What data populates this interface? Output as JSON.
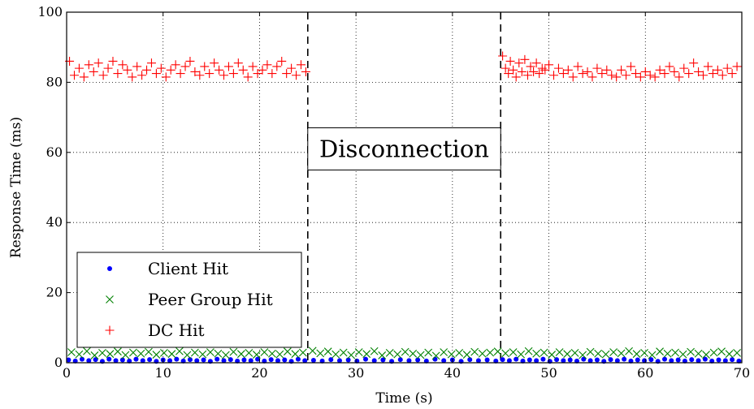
{
  "chart_data": {
    "type": "scatter",
    "xlabel": "Time (s)",
    "ylabel": "Response Time (ms)",
    "xlim": [
      0,
      70
    ],
    "ylim": [
      0,
      100
    ],
    "xticks": [
      0,
      10,
      20,
      30,
      40,
      50,
      60,
      70
    ],
    "yticks": [
      0,
      20,
      40,
      60,
      80,
      100
    ],
    "grid": true,
    "legend_position": "bottom-left",
    "vlines": [
      25,
      45
    ],
    "annotation": {
      "text": "Disconnection",
      "x_start": 25,
      "x_end": 45,
      "y": 61
    },
    "series": [
      {
        "name": "Client Hit",
        "marker": "dot",
        "color": "#0000ff",
        "points": [
          [
            0.2,
            0.8
          ],
          [
            0.9,
            0.5
          ],
          [
            1.6,
            1.0
          ],
          [
            2.3,
            0.6
          ],
          [
            3.0,
            0.9
          ],
          [
            3.7,
            0.4
          ],
          [
            4.4,
            1.0
          ],
          [
            5.1,
            0.6
          ],
          [
            5.8,
            0.8
          ],
          [
            6.5,
            0.5
          ],
          [
            7.2,
            1.0
          ],
          [
            7.9,
            0.6
          ],
          [
            8.6,
            0.9
          ],
          [
            9.3,
            0.4
          ],
          [
            10.0,
            0.8
          ],
          [
            10.7,
            0.6
          ],
          [
            11.4,
            1.0
          ],
          [
            12.1,
            0.5
          ],
          [
            12.8,
            0.9
          ],
          [
            13.5,
            0.6
          ],
          [
            14.2,
            0.8
          ],
          [
            14.9,
            0.4
          ],
          [
            15.6,
            1.0
          ],
          [
            16.3,
            0.6
          ],
          [
            17.0,
            0.9
          ],
          [
            17.7,
            0.5
          ],
          [
            18.4,
            0.8
          ],
          [
            19.1,
            0.6
          ],
          [
            19.8,
            1.0
          ],
          [
            20.5,
            0.5
          ],
          [
            21.2,
            0.9
          ],
          [
            21.9,
            0.6
          ],
          [
            22.6,
            0.8
          ],
          [
            23.3,
            0.4
          ],
          [
            24.0,
            1.0
          ],
          [
            24.7,
            0.6
          ],
          [
            25.6,
            0.7
          ],
          [
            26.5,
            0.5
          ],
          [
            27.4,
            0.9
          ],
          [
            28.3,
            0.6
          ],
          [
            29.2,
            0.8
          ],
          [
            30.1,
            0.5
          ],
          [
            31.0,
            1.0
          ],
          [
            31.9,
            0.6
          ],
          [
            32.8,
            0.8
          ],
          [
            33.7,
            0.4
          ],
          [
            34.6,
            0.9
          ],
          [
            35.5,
            0.6
          ],
          [
            36.4,
            0.8
          ],
          [
            37.3,
            0.5
          ],
          [
            38.2,
            1.0
          ],
          [
            39.1,
            0.6
          ],
          [
            40.0,
            0.8
          ],
          [
            40.9,
            0.4
          ],
          [
            41.8,
            0.9
          ],
          [
            42.7,
            0.6
          ],
          [
            43.6,
            0.8
          ],
          [
            44.5,
            0.5
          ],
          [
            45.2,
            0.9
          ],
          [
            45.9,
            0.6
          ],
          [
            46.6,
            1.0
          ],
          [
            47.3,
            0.5
          ],
          [
            48.0,
            0.8
          ],
          [
            48.7,
            0.6
          ],
          [
            49.4,
            1.0
          ],
          [
            50.1,
            0.4
          ],
          [
            50.8,
            0.9
          ],
          [
            51.5,
            0.6
          ],
          [
            52.2,
            0.8
          ],
          [
            52.9,
            0.5
          ],
          [
            53.6,
            1.0
          ],
          [
            54.3,
            0.6
          ],
          [
            55.0,
            0.8
          ],
          [
            55.7,
            0.4
          ],
          [
            56.4,
            0.9
          ],
          [
            57.1,
            0.6
          ],
          [
            57.8,
            1.0
          ],
          [
            58.5,
            0.5
          ],
          [
            59.2,
            0.8
          ],
          [
            59.9,
            0.6
          ],
          [
            60.6,
            0.9
          ],
          [
            61.3,
            0.4
          ],
          [
            62.0,
            1.0
          ],
          [
            62.7,
            0.6
          ],
          [
            63.4,
            0.8
          ],
          [
            64.1,
            0.5
          ],
          [
            64.8,
            0.9
          ],
          [
            65.5,
            0.6
          ],
          [
            66.2,
            1.0
          ],
          [
            66.9,
            0.5
          ],
          [
            67.6,
            0.8
          ],
          [
            68.3,
            0.6
          ],
          [
            69.0,
            0.9
          ],
          [
            69.7,
            0.5
          ]
        ]
      },
      {
        "name": "Peer Group Hit",
        "marker": "x",
        "color": "#008000",
        "points": [
          [
            0.5,
            3.0
          ],
          [
            1.3,
            2.4
          ],
          [
            2.1,
            3.3
          ],
          [
            2.9,
            2.1
          ],
          [
            3.7,
            2.8
          ],
          [
            4.5,
            2.5
          ],
          [
            5.3,
            3.2
          ],
          [
            6.1,
            2.2
          ],
          [
            6.9,
            2.9
          ],
          [
            7.7,
            2.6
          ],
          [
            8.5,
            3.1
          ],
          [
            9.3,
            2.3
          ],
          [
            10.1,
            2.8
          ],
          [
            10.9,
            2.5
          ],
          [
            11.7,
            3.3
          ],
          [
            12.5,
            2.2
          ],
          [
            13.3,
            2.9
          ],
          [
            14.1,
            2.4
          ],
          [
            14.9,
            3.0
          ],
          [
            15.7,
            2.6
          ],
          [
            16.5,
            2.2
          ],
          [
            17.3,
            3.1
          ],
          [
            18.1,
            2.5
          ],
          [
            18.9,
            2.8
          ],
          [
            19.7,
            2.3
          ],
          [
            20.5,
            3.0
          ],
          [
            21.3,
            2.6
          ],
          [
            22.1,
            2.4
          ],
          [
            22.9,
            3.2
          ],
          [
            23.7,
            2.5
          ],
          [
            24.5,
            2.9
          ],
          [
            25.5,
            3.4
          ],
          [
            26.3,
            2.7
          ],
          [
            27.1,
            3.2
          ],
          [
            27.9,
            2.4
          ],
          [
            28.7,
            2.9
          ],
          [
            29.5,
            2.2
          ],
          [
            30.3,
            3.0
          ],
          [
            31.1,
            2.5
          ],
          [
            31.9,
            3.3
          ],
          [
            32.7,
            2.1
          ],
          [
            33.5,
            2.8
          ],
          [
            34.3,
            2.4
          ],
          [
            35.1,
            3.1
          ],
          [
            35.9,
            2.6
          ],
          [
            36.7,
            2.2
          ],
          [
            37.5,
            2.9
          ],
          [
            38.3,
            2.0
          ],
          [
            39.1,
            3.0
          ],
          [
            39.9,
            2.4
          ],
          [
            40.7,
            2.8
          ],
          [
            41.5,
            2.3
          ],
          [
            42.3,
            3.1
          ],
          [
            43.1,
            2.6
          ],
          [
            43.9,
            2.9
          ],
          [
            44.7,
            3.2
          ],
          [
            45.5,
            2.7
          ],
          [
            46.3,
            3.0
          ],
          [
            47.1,
            2.4
          ],
          [
            47.9,
            3.3
          ],
          [
            48.7,
            2.6
          ],
          [
            49.5,
            2.9
          ],
          [
            50.3,
            2.3
          ],
          [
            51.1,
            3.0
          ],
          [
            51.9,
            2.5
          ],
          [
            52.7,
            2.8
          ],
          [
            53.5,
            2.2
          ],
          [
            54.3,
            3.1
          ],
          [
            55.1,
            2.6
          ],
          [
            55.9,
            2.4
          ],
          [
            56.7,
            3.0
          ],
          [
            57.5,
            2.7
          ],
          [
            58.3,
            3.3
          ],
          [
            59.1,
            2.5
          ],
          [
            59.9,
            2.8
          ],
          [
            60.7,
            2.2
          ],
          [
            61.5,
            3.2
          ],
          [
            62.3,
            2.6
          ],
          [
            63.1,
            2.9
          ],
          [
            63.9,
            2.4
          ],
          [
            64.7,
            3.1
          ],
          [
            65.5,
            2.6
          ],
          [
            66.3,
            2.3
          ],
          [
            67.1,
            2.9
          ],
          [
            67.9,
            3.2
          ],
          [
            68.7,
            2.5
          ],
          [
            69.5,
            2.8
          ]
        ]
      },
      {
        "name": "DC Hit",
        "marker": "plus",
        "color": "#ff0000",
        "points": [
          [
            0.3,
            86.0
          ],
          [
            0.8,
            82.0
          ],
          [
            1.3,
            84.0
          ],
          [
            1.8,
            81.5
          ],
          [
            2.3,
            85.0
          ],
          [
            2.8,
            83.0
          ],
          [
            3.3,
            85.5
          ],
          [
            3.8,
            82.0
          ],
          [
            4.3,
            84.0
          ],
          [
            4.8,
            86.0
          ],
          [
            5.3,
            82.5
          ],
          [
            5.8,
            85.0
          ],
          [
            6.3,
            83.5
          ],
          [
            6.8,
            81.5
          ],
          [
            7.3,
            84.5
          ],
          [
            7.8,
            82.0
          ],
          [
            8.3,
            83.5
          ],
          [
            8.8,
            85.5
          ],
          [
            9.3,
            82.5
          ],
          [
            9.8,
            84.0
          ],
          [
            10.3,
            81.5
          ],
          [
            10.8,
            83.5
          ],
          [
            11.3,
            85.0
          ],
          [
            11.8,
            82.5
          ],
          [
            12.3,
            84.5
          ],
          [
            12.8,
            86.0
          ],
          [
            13.3,
            83.0
          ],
          [
            13.8,
            82.0
          ],
          [
            14.3,
            84.5
          ],
          [
            14.8,
            82.5
          ],
          [
            15.3,
            85.5
          ],
          [
            15.8,
            83.5
          ],
          [
            16.3,
            82.0
          ],
          [
            16.8,
            84.5
          ],
          [
            17.3,
            82.5
          ],
          [
            17.8,
            85.5
          ],
          [
            18.3,
            83.5
          ],
          [
            18.8,
            81.5
          ],
          [
            19.3,
            84.5
          ],
          [
            19.8,
            82.5
          ],
          [
            20.3,
            83.5
          ],
          [
            20.8,
            85.0
          ],
          [
            21.3,
            82.5
          ],
          [
            21.8,
            84.5
          ],
          [
            22.3,
            86.0
          ],
          [
            22.8,
            82.5
          ],
          [
            23.3,
            84.0
          ],
          [
            23.8,
            82.0
          ],
          [
            24.3,
            85.0
          ],
          [
            24.8,
            83.0
          ],
          [
            45.2,
            87.5
          ],
          [
            45.5,
            84.0
          ],
          [
            45.8,
            82.5
          ],
          [
            46.0,
            86.0
          ],
          [
            46.3,
            83.5
          ],
          [
            46.6,
            81.5
          ],
          [
            46.9,
            85.5
          ],
          [
            47.2,
            83.0
          ],
          [
            47.5,
            86.5
          ],
          [
            47.8,
            82.0
          ],
          [
            48.1,
            84.5
          ],
          [
            48.4,
            83.0
          ],
          [
            48.7,
            85.5
          ],
          [
            49.0,
            82.5
          ],
          [
            49.3,
            84.0
          ],
          [
            49.6,
            83.5
          ],
          [
            50.0,
            85.0
          ],
          [
            50.5,
            82.0
          ],
          [
            51.0,
            84.0
          ],
          [
            51.5,
            82.5
          ],
          [
            52.0,
            83.5
          ],
          [
            52.5,
            81.5
          ],
          [
            53.0,
            84.5
          ],
          [
            53.5,
            82.5
          ],
          [
            54.0,
            83.0
          ],
          [
            54.5,
            81.5
          ],
          [
            55.0,
            84.0
          ],
          [
            55.5,
            82.5
          ],
          [
            56.0,
            83.5
          ],
          [
            56.5,
            82.0
          ],
          [
            57.0,
            81.5
          ],
          [
            57.5,
            83.5
          ],
          [
            58.0,
            82.0
          ],
          [
            58.5,
            84.5
          ],
          [
            59.0,
            82.5
          ],
          [
            59.5,
            81.5
          ],
          [
            60.0,
            83.0
          ],
          [
            60.5,
            82.0
          ],
          [
            61.0,
            81.5
          ],
          [
            61.5,
            83.5
          ],
          [
            62.0,
            82.5
          ],
          [
            62.5,
            84.5
          ],
          [
            63.0,
            83.0
          ],
          [
            63.5,
            81.5
          ],
          [
            64.0,
            84.0
          ],
          [
            64.5,
            82.5
          ],
          [
            65.0,
            85.5
          ],
          [
            65.5,
            83.0
          ],
          [
            66.0,
            82.0
          ],
          [
            66.5,
            84.5
          ],
          [
            67.0,
            82.5
          ],
          [
            67.5,
            83.5
          ],
          [
            68.0,
            82.0
          ],
          [
            68.5,
            84.0
          ],
          [
            69.0,
            82.5
          ],
          [
            69.5,
            84.5
          ]
        ]
      }
    ]
  }
}
